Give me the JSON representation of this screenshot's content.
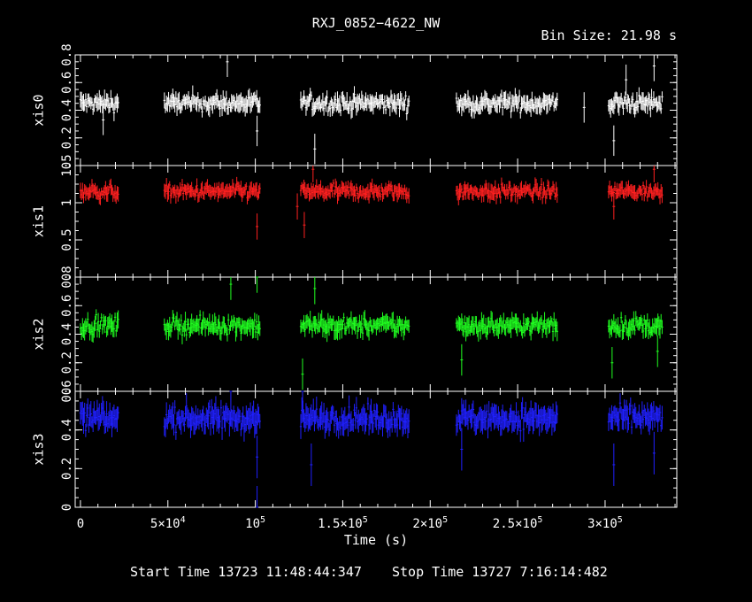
{
  "title": "RXJ_0852−4622_NW",
  "bin_size": "Bin Size: 21.98 s",
  "xlabel": "Time (s)",
  "footer": {
    "start": "Start Time 13723 11:48:44:347",
    "stop": "Stop Time 13727  7:16:14:482"
  },
  "x_ticks": [
    {
      "value": 0,
      "base": "0",
      "exp": ""
    },
    {
      "value": 50000,
      "base": "5×10",
      "exp": "4"
    },
    {
      "value": 100000,
      "base": "10",
      "exp": "5"
    },
    {
      "value": 150000,
      "base": "1.5×10",
      "exp": "5"
    },
    {
      "value": 200000,
      "base": "2×10",
      "exp": "5"
    },
    {
      "value": 250000,
      "base": "2.5×10",
      "exp": "5"
    },
    {
      "value": 300000,
      "base": "3×10",
      "exp": "5"
    }
  ],
  "chart_data": {
    "type": "scatter",
    "xlim": [
      -3000,
      341000
    ],
    "segments": [
      [
        0,
        22000
      ],
      [
        48000,
        103000
      ],
      [
        126000,
        188000
      ],
      [
        215000,
        273000
      ],
      [
        302000,
        333000
      ]
    ],
    "series": [
      {
        "name": "xis0",
        "color": "#ffffff",
        "ylim": [
          0,
          0.8
        ],
        "level": 0.45,
        "spread": 0.05,
        "yticks": [
          0,
          0.2,
          0.4,
          0.6,
          0.8
        ],
        "outliers": [
          [
            13000,
            0.33
          ],
          [
            84000,
            0.75
          ],
          [
            101000,
            0.25
          ],
          [
            134000,
            0.12
          ],
          [
            305000,
            0.18
          ],
          [
            312000,
            0.62
          ],
          [
            328000,
            0.72
          ],
          [
            288000,
            0.42
          ]
        ]
      },
      {
        "name": "xis1",
        "color": "#ff2020",
        "ylim": [
          0,
          1.5
        ],
        "level": 1.15,
        "spread": 0.08,
        "yticks": [
          0,
          0.5,
          1,
          1.5
        ],
        "outliers": [
          [
            101000,
            0.68
          ],
          [
            128000,
            0.7
          ],
          [
            133000,
            1.45
          ],
          [
            124000,
            0.95
          ],
          [
            305000,
            0.95
          ],
          [
            328000,
            1.45
          ]
        ]
      },
      {
        "name": "xis2",
        "color": "#20ff20",
        "ylim": [
          0,
          0.8
        ],
        "level": 0.46,
        "spread": 0.05,
        "yticks": [
          0,
          0.2,
          0.4,
          0.6,
          0.8
        ],
        "outliers": [
          [
            86000,
            0.75
          ],
          [
            101000,
            0.8
          ],
          [
            127000,
            0.12
          ],
          [
            134000,
            0.72
          ],
          [
            218000,
            0.22
          ],
          [
            304000,
            0.2
          ],
          [
            330000,
            0.28
          ]
        ]
      },
      {
        "name": "xis3",
        "color": "#2020ff",
        "ylim": [
          0,
          0.6
        ],
        "level": 0.46,
        "spread": 0.05,
        "yticks": [
          0,
          0.2,
          0.4,
          0.6
        ],
        "outliers": [
          [
            101000,
            0.0
          ],
          [
            101000,
            0.26
          ],
          [
            132000,
            0.22
          ],
          [
            218000,
            0.3
          ],
          [
            305000,
            0.22
          ],
          [
            328000,
            0.28
          ],
          [
            127000,
            0.6
          ],
          [
            86000,
            0.6
          ]
        ]
      }
    ]
  }
}
